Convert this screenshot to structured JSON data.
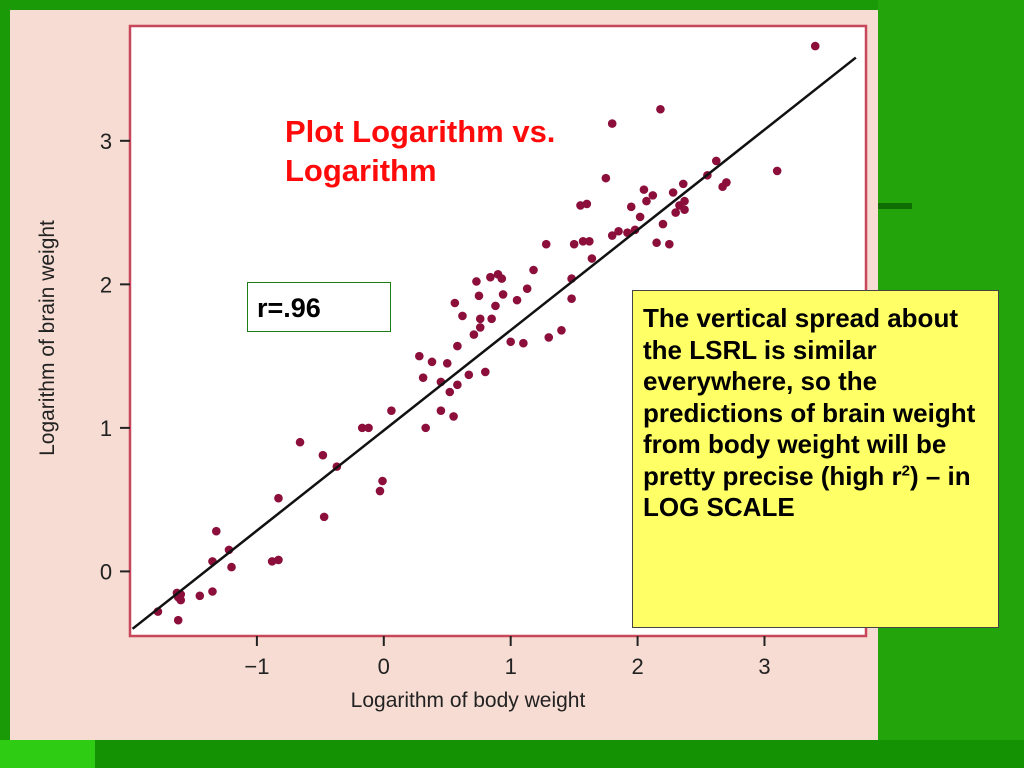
{
  "slide": {
    "title_line1": "Plot Logarithm vs.",
    "title_line2": "Logarithm",
    "correlation_label": "r=.96",
    "note": {
      "text_before_sup": "The vertical spread about the LSRL is similar everywhere, so the predictions of brain weight from body weight will be pretty precise (high r",
      "sup": "2",
      "text_after_sup": ") – in LOG SCALE"
    },
    "colors": {
      "background_green": "#1a9a06",
      "panel": "#f6dcd2",
      "frame": "#c8475a",
      "points": "#8b0f3a",
      "title": "#ff0a0a",
      "note_bg": "#ffff66"
    }
  },
  "chart_data": {
    "type": "scatter",
    "xlabel": "Logarithm of body weight",
    "ylabel": "Logarithm of brain weight",
    "xlim": [
      -2,
      3.8
    ],
    "ylim": [
      -0.45,
      3.8
    ],
    "x_ticks": [
      -1,
      0,
      1,
      2,
      3
    ],
    "x_tick_labels": [
      "−1",
      "0",
      "1",
      "2",
      "3"
    ],
    "y_ticks": [
      0,
      1,
      2,
      3
    ],
    "y_tick_labels": [
      "0",
      "1",
      "2",
      "3"
    ],
    "grid": false,
    "regression_line": {
      "x": [
        -1.98,
        3.72
      ],
      "y": [
        -0.4,
        3.58
      ]
    },
    "points": [
      {
        "x": -1.78,
        "y": -0.28
      },
      {
        "x": -1.63,
        "y": -0.15
      },
      {
        "x": -1.62,
        "y": -0.18
      },
      {
        "x": -1.6,
        "y": -0.16
      },
      {
        "x": -1.6,
        "y": -0.2
      },
      {
        "x": -1.62,
        "y": -0.34
      },
      {
        "x": -1.45,
        "y": -0.17
      },
      {
        "x": -1.35,
        "y": -0.14
      },
      {
        "x": -1.35,
        "y": 0.07
      },
      {
        "x": -1.32,
        "y": 0.28
      },
      {
        "x": -1.22,
        "y": 0.15
      },
      {
        "x": -1.2,
        "y": 0.03
      },
      {
        "x": -0.88,
        "y": 0.07
      },
      {
        "x": -0.83,
        "y": 0.08
      },
      {
        "x": -0.83,
        "y": 0.51
      },
      {
        "x": -0.66,
        "y": 0.9
      },
      {
        "x": -0.48,
        "y": 0.81
      },
      {
        "x": -0.47,
        "y": 0.38
      },
      {
        "x": -0.37,
        "y": 0.73
      },
      {
        "x": -0.17,
        "y": 1.0
      },
      {
        "x": -0.12,
        "y": 1.0
      },
      {
        "x": -0.03,
        "y": 0.56
      },
      {
        "x": -0.01,
        "y": 0.63
      },
      {
        "x": 0.06,
        "y": 1.12
      },
      {
        "x": 0.28,
        "y": 1.5
      },
      {
        "x": 0.31,
        "y": 1.35
      },
      {
        "x": 0.33,
        "y": 1.0
      },
      {
        "x": 0.38,
        "y": 1.46
      },
      {
        "x": 0.45,
        "y": 1.32
      },
      {
        "x": 0.45,
        "y": 1.12
      },
      {
        "x": 0.5,
        "y": 1.45
      },
      {
        "x": 0.52,
        "y": 1.25
      },
      {
        "x": 0.55,
        "y": 1.08
      },
      {
        "x": 0.56,
        "y": 1.87
      },
      {
        "x": 0.58,
        "y": 1.57
      },
      {
        "x": 0.58,
        "y": 1.3
      },
      {
        "x": 0.62,
        "y": 1.78
      },
      {
        "x": 0.67,
        "y": 1.37
      },
      {
        "x": 0.71,
        "y": 1.65
      },
      {
        "x": 0.73,
        "y": 2.02
      },
      {
        "x": 0.75,
        "y": 1.92
      },
      {
        "x": 0.76,
        "y": 1.76
      },
      {
        "x": 0.76,
        "y": 1.7
      },
      {
        "x": 0.8,
        "y": 1.39
      },
      {
        "x": 0.84,
        "y": 2.05
      },
      {
        "x": 0.85,
        "y": 1.76
      },
      {
        "x": 0.88,
        "y": 1.85
      },
      {
        "x": 0.9,
        "y": 2.07
      },
      {
        "x": 0.93,
        "y": 2.04
      },
      {
        "x": 0.94,
        "y": 1.93
      },
      {
        "x": 1.0,
        "y": 1.6
      },
      {
        "x": 1.05,
        "y": 1.89
      },
      {
        "x": 1.1,
        "y": 1.59
      },
      {
        "x": 1.13,
        "y": 1.97
      },
      {
        "x": 1.18,
        "y": 2.1
      },
      {
        "x": 1.28,
        "y": 2.28
      },
      {
        "x": 1.3,
        "y": 1.63
      },
      {
        "x": 1.4,
        "y": 1.68
      },
      {
        "x": 1.48,
        "y": 1.9
      },
      {
        "x": 1.48,
        "y": 2.04
      },
      {
        "x": 1.5,
        "y": 2.28
      },
      {
        "x": 1.55,
        "y": 2.55
      },
      {
        "x": 1.57,
        "y": 2.3
      },
      {
        "x": 1.6,
        "y": 2.56
      },
      {
        "x": 1.62,
        "y": 2.3
      },
      {
        "x": 1.64,
        "y": 2.18
      },
      {
        "x": 1.75,
        "y": 2.74
      },
      {
        "x": 1.8,
        "y": 3.12
      },
      {
        "x": 1.8,
        "y": 2.34
      },
      {
        "x": 1.85,
        "y": 2.37
      },
      {
        "x": 1.92,
        "y": 2.36
      },
      {
        "x": 1.95,
        "y": 2.54
      },
      {
        "x": 1.98,
        "y": 2.38
      },
      {
        "x": 2.02,
        "y": 2.47
      },
      {
        "x": 2.05,
        "y": 2.66
      },
      {
        "x": 2.07,
        "y": 2.58
      },
      {
        "x": 2.12,
        "y": 2.62
      },
      {
        "x": 2.15,
        "y": 2.29
      },
      {
        "x": 2.18,
        "y": 3.22
      },
      {
        "x": 2.2,
        "y": 2.42
      },
      {
        "x": 2.25,
        "y": 2.28
      },
      {
        "x": 2.28,
        "y": 2.64
      },
      {
        "x": 2.3,
        "y": 2.5
      },
      {
        "x": 2.33,
        "y": 2.55
      },
      {
        "x": 2.36,
        "y": 2.7
      },
      {
        "x": 2.37,
        "y": 2.58
      },
      {
        "x": 2.37,
        "y": 2.52
      },
      {
        "x": 2.55,
        "y": 2.76
      },
      {
        "x": 2.62,
        "y": 2.86
      },
      {
        "x": 2.67,
        "y": 2.68
      },
      {
        "x": 2.7,
        "y": 2.71
      },
      {
        "x": 3.1,
        "y": 2.79
      },
      {
        "x": 3.4,
        "y": 3.66
      }
    ]
  }
}
